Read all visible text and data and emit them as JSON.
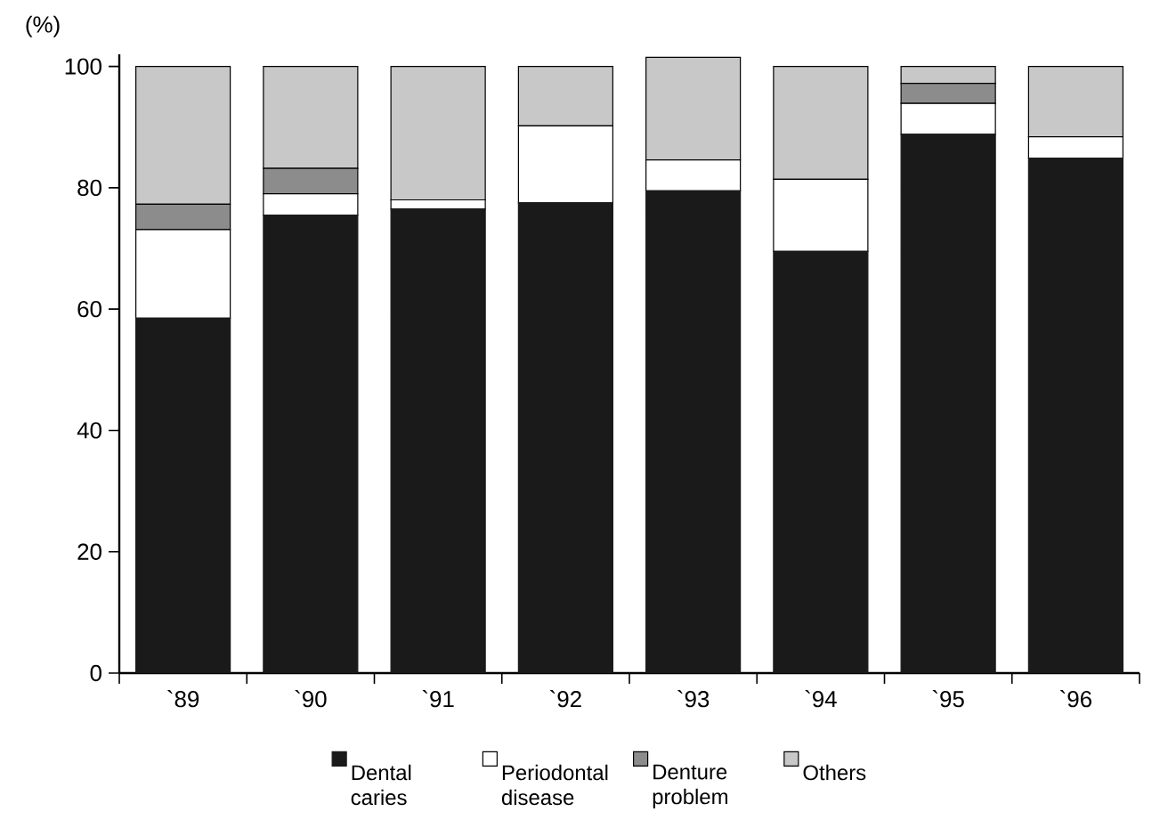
{
  "chart_data": {
    "type": "bar",
    "stacked": true,
    "ylabel": "(%)",
    "categories": [
      "`89",
      "`90",
      "`91",
      "`92",
      "`93",
      "`94",
      "`95",
      "`96"
    ],
    "series": [
      {
        "name": "Dental caries",
        "color": "#1a1a1a",
        "values": [
          58.5,
          75.5,
          76.5,
          77.5,
          79.5,
          69.5,
          88.8,
          84.9
        ]
      },
      {
        "name": "Periodontal disease",
        "color": "#ffffff",
        "values": [
          14.6,
          3.5,
          1.5,
          12.7,
          5.1,
          11.9,
          5.1,
          3.5
        ]
      },
      {
        "name": "Denture problem",
        "color": "#8c8c8c",
        "values": [
          4.2,
          4.2,
          0,
          0,
          0,
          0,
          3.3,
          0
        ]
      },
      {
        "name": "Others",
        "color": "#c8c8c8",
        "values": [
          22.7,
          16.8,
          22,
          9.8,
          16.9,
          18.6,
          2.8,
          11.6
        ]
      }
    ],
    "ylim": [
      0,
      102
    ],
    "yticks": [
      0,
      20,
      40,
      60,
      80,
      100
    ],
    "grid": false,
    "legend": "bottom"
  }
}
